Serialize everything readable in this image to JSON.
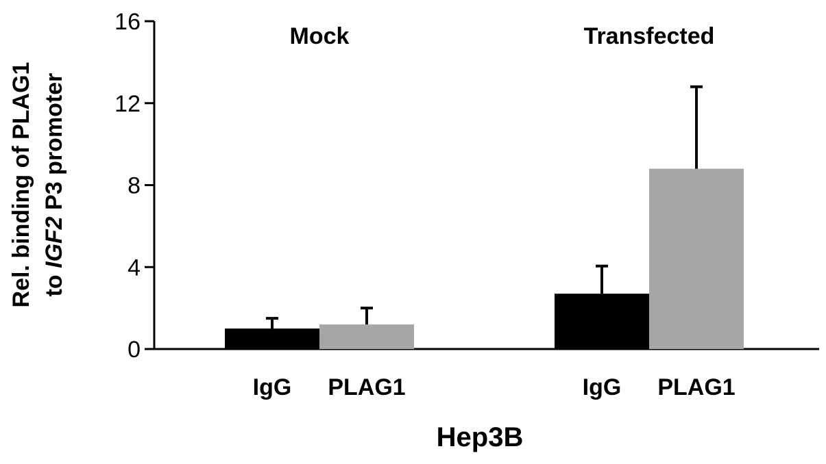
{
  "chart_data": {
    "type": "bar",
    "ylabel_line1": "Rel. binding of PLAG1",
    "ylabel_line2_pre": "to ",
    "ylabel_line2_italic": "IGF2",
    "ylabel_line2_post": " P3 promoter",
    "xlabel": "Hep3B",
    "ylim": [
      0,
      16
    ],
    "yticks": [
      "0",
      "4",
      "8",
      "12",
      "16"
    ],
    "grid": false,
    "groups": [
      {
        "label": "Mock",
        "bars": [
          {
            "category": "IgG",
            "value": 1.0,
            "error": 0.5,
            "color": "#000000"
          },
          {
            "category": "PLAG1",
            "value": 1.2,
            "error": 0.8,
            "color": "#a6a6a6"
          }
        ]
      },
      {
        "label": "Transfected",
        "bars": [
          {
            "category": "IgG",
            "value": 2.7,
            "error": 1.35,
            "color": "#000000"
          },
          {
            "category": "PLAG1",
            "value": 8.8,
            "error": 4.0,
            "color": "#a6a6a6"
          }
        ]
      }
    ]
  }
}
